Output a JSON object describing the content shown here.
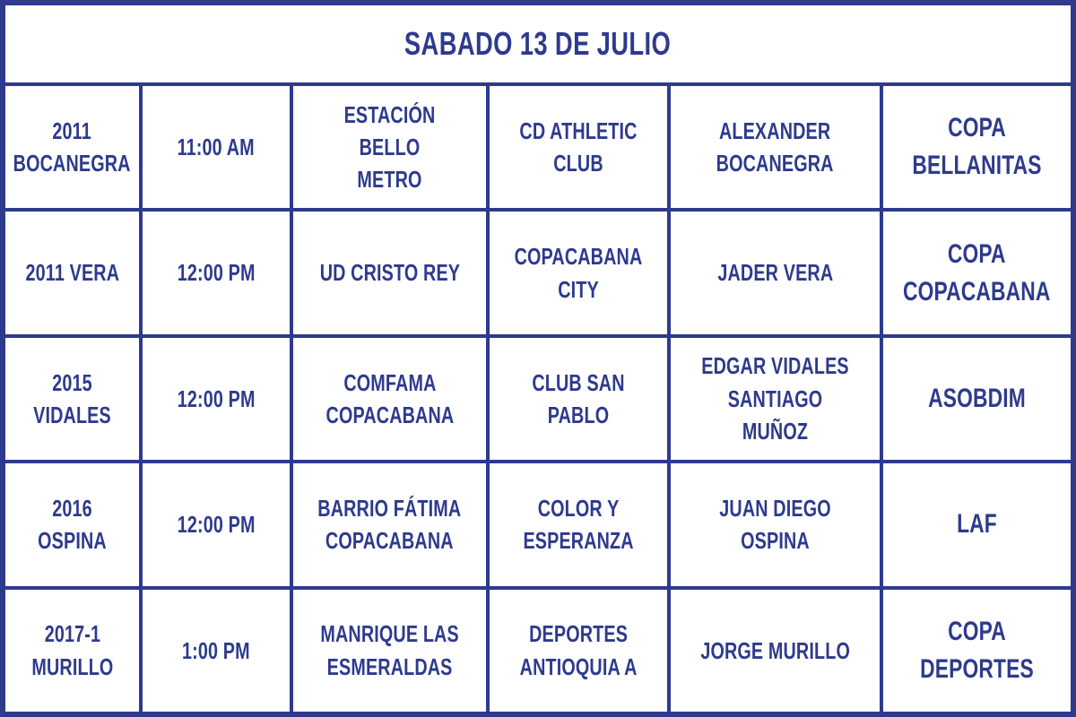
{
  "colors": {
    "accent": "#2d3a8e",
    "cell_background": "#ffffff"
  },
  "header": {
    "title": "SABADO 13 DE JULIO"
  },
  "rows": [
    {
      "team": "2011\nBOCANEGRA",
      "time": "11:00 AM",
      "venue": "ESTACIÓN BELLO\nMETRO",
      "opponent": "CD ATHLETIC CLUB",
      "coach": "ALEXANDER\nBOCANEGRA",
      "tournament": "COPA BELLANITAS"
    },
    {
      "team": "2011 VERA",
      "time": "12:00 PM",
      "venue": "UD CRISTO REY",
      "opponent": "COPACABANA CITY",
      "coach": "JADER VERA",
      "tournament": "COPA\nCOPACABANA"
    },
    {
      "team": "2015 VIDALES",
      "time": "12:00 PM",
      "venue": "COMFAMA\nCOPACABANA",
      "opponent": "CLUB SAN PABLO",
      "coach": "EDGAR VIDALES\nSANTIAGO MUÑOZ",
      "tournament": "ASOBDIM"
    },
    {
      "team": "2016 OSPINA",
      "time": "12:00 PM",
      "venue": "BARRIO FÁTIMA\nCOPACABANA",
      "opponent": "COLOR Y\nESPERANZA",
      "coach": "JUAN DIEGO OSPINA",
      "tournament": "LAF"
    },
    {
      "team": "2017-1\nMURILLO",
      "time": "1:00 PM",
      "venue": "MANRIQUE LAS\nESMERALDAS",
      "opponent": "DEPORTES\nANTIOQUIA A",
      "coach": "JORGE MURILLO",
      "tournament": "COPA DEPORTES"
    }
  ]
}
